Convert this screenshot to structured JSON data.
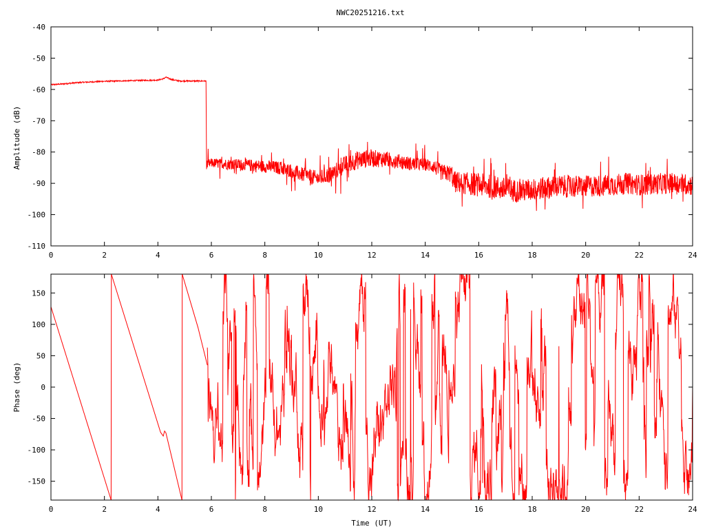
{
  "title": "NWC20251216.txt",
  "colors": {
    "series": "#ff0000",
    "axes": "#000000",
    "background": "#ffffff"
  },
  "chart_data": [
    {
      "type": "line",
      "panel": "amplitude",
      "xlabel": "",
      "ylabel": "Amplitude (dB)",
      "xlim": [
        0,
        24
      ],
      "ylim": [
        -110,
        -40
      ],
      "xticks": [
        0,
        2,
        4,
        6,
        8,
        10,
        12,
        14,
        16,
        18,
        20,
        22,
        24
      ],
      "yticks": [
        -110,
        -100,
        -90,
        -80,
        -70,
        -60,
        -50,
        -40
      ],
      "xtick_labels": [
        "0",
        "2",
        "4",
        "6",
        "8",
        "10",
        "12",
        "14",
        "16",
        "18",
        "20",
        "22",
        "24"
      ],
      "ytick_labels": [
        "-110",
        "-100",
        "-90",
        "-80",
        "-70",
        "-60",
        "-50",
        "-40"
      ],
      "grid": false,
      "series": [
        {
          "color": "#ff0000",
          "x": [
            0,
            0.5,
            1,
            1.5,
            2,
            2.5,
            3,
            3.5,
            4,
            4.2,
            4.3,
            4.5,
            4.8,
            5,
            5.5,
            5.8,
            5.82,
            6,
            6.5,
            7,
            7.5,
            8,
            8.5,
            9,
            9.5,
            10,
            10.5,
            11,
            11.5,
            12,
            12.5,
            13,
            13.5,
            14,
            14.3,
            14.6,
            15,
            15.05,
            15.5,
            16,
            16.5,
            17,
            17.5,
            18,
            18.5,
            19,
            19.5,
            20,
            20.5,
            21,
            21.5,
            22,
            22.5,
            23,
            23.5,
            24
          ],
          "y": [
            -58.5,
            -58.2,
            -57.8,
            -57.6,
            -57.4,
            -57.3,
            -57.2,
            -57.1,
            -57.0,
            -56.6,
            -56.1,
            -56.8,
            -57.3,
            -57.3,
            -57.3,
            -57.3,
            -84.0,
            -83.5,
            -83.8,
            -84.0,
            -84.3,
            -84.6,
            -85.0,
            -86.0,
            -87.5,
            -88.5,
            -87.0,
            -84.0,
            -82.5,
            -82.0,
            -82.3,
            -83.0,
            -83.8,
            -84.0,
            -84.5,
            -86.5,
            -87.0,
            -89.5,
            -90.0,
            -90.5,
            -91.0,
            -92.0,
            -92.5,
            -92.0,
            -91.5,
            -91.0,
            -91.0,
            -91.0,
            -90.8,
            -90.5,
            -90.0,
            -90.5,
            -90.3,
            -90.0,
            -90.2,
            -90.5
          ],
          "noise": [
            0.2,
            0.2,
            0.2,
            0.2,
            0.2,
            0.2,
            0.2,
            0.2,
            0.2,
            0.2,
            0.2,
            0.2,
            0.2,
            0.2,
            0.2,
            0.2,
            1.5,
            1.5,
            1.7,
            1.8,
            2.0,
            2.0,
            2.1,
            2.2,
            2.4,
            2.5,
            2.6,
            2.8,
            3.0,
            2.8,
            2.6,
            2.4,
            2.2,
            2.0,
            2.2,
            2.6,
            2.8,
            3.5,
            3.6,
            3.8,
            3.8,
            3.8,
            3.7,
            3.6,
            3.6,
            3.6,
            3.6,
            3.5,
            3.5,
            3.5,
            3.4,
            3.4,
            3.4,
            3.4,
            3.4,
            3.4
          ]
        }
      ]
    },
    {
      "type": "line",
      "panel": "phase",
      "xlabel": "Time (UT)",
      "ylabel": "Phase (deg)",
      "xlim": [
        0,
        24
      ],
      "ylim": [
        -180,
        180
      ],
      "xticks": [
        0,
        2,
        4,
        6,
        8,
        10,
        12,
        14,
        16,
        18,
        20,
        22,
        24
      ],
      "yticks": [
        -150,
        -100,
        -50,
        0,
        50,
        100,
        150
      ],
      "xtick_labels": [
        "0",
        "2",
        "4",
        "6",
        "8",
        "10",
        "12",
        "14",
        "16",
        "18",
        "20",
        "22",
        "24"
      ],
      "ytick_labels": [
        "-150",
        "-100",
        "-50",
        "0",
        "50",
        "100",
        "150"
      ],
      "grid": false,
      "series": [
        {
          "color": "#ff0000",
          "segments": [
            {
              "x": [
                0,
                2.25
              ],
              "y": [
                128,
                -180
              ]
            },
            {
              "x": [
                2.25,
                2.26
              ],
              "y": [
                -180,
                180
              ]
            },
            {
              "x": [
                2.26,
                4.1,
                4.2,
                4.25,
                4.3,
                4.9
              ],
              "y": [
                180,
                -72,
                -78,
                -70,
                -73,
                -180
              ]
            },
            {
              "x": [
                4.9,
                4.91
              ],
              "y": [
                -180,
                180
              ]
            },
            {
              "x": [
                4.91,
                5.5,
                5.85
              ],
              "y": [
                180,
                95,
                35
              ]
            }
          ],
          "noisy_from_x": 5.85,
          "noisy_to_x": 24
        }
      ]
    }
  ]
}
